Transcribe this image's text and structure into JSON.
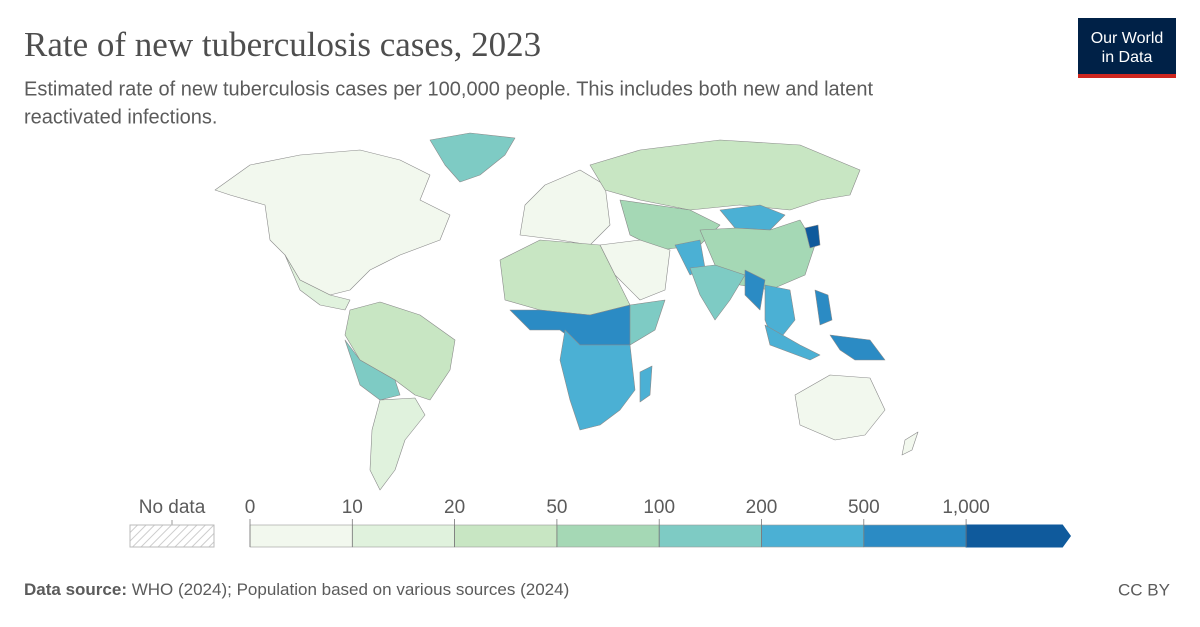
{
  "header": {
    "title": "Rate of new tuberculosis cases, 2023",
    "subtitle": [
      "Estimated rate of new tuberculosis cases per 100,000 people. This includes both new and latent",
      "reactivated infections."
    ],
    "logo": [
      "Our World",
      "in Data"
    ]
  },
  "legend": {
    "no_data": "No data",
    "ticks": [
      0,
      10,
      20,
      50,
      100,
      200,
      500,
      {
        "value": 1000,
        "label": "1,000"
      }
    ],
    "colors": [
      "#f2f8ee",
      "#e0f2dd",
      "#c8e6c3",
      "#a5d8b5",
      "#7ecbc4",
      "#4bb0d4",
      "#2b8bc4",
      "#0f5a9c"
    ]
  },
  "footer": {
    "source_label": "Data source:",
    "source": "WHO (2024); Population based on various sources (2024)",
    "license": "CC BY"
  }
}
